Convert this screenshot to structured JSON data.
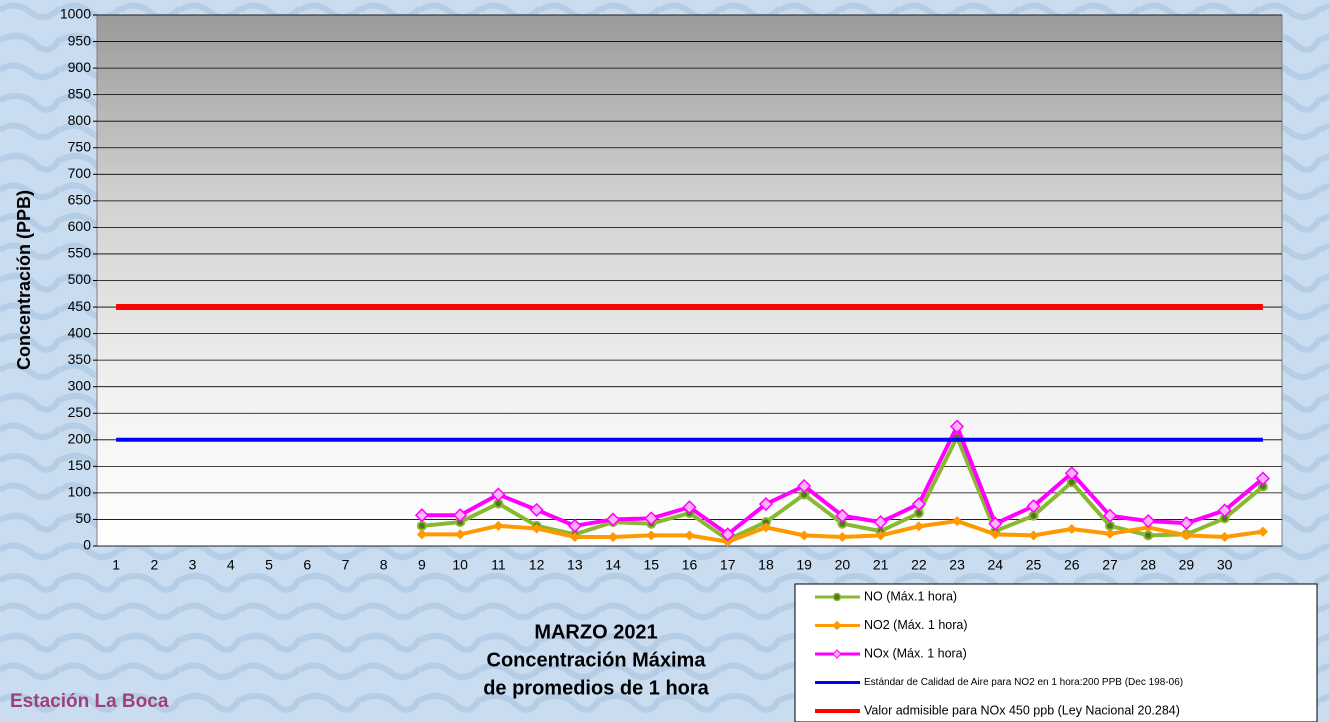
{
  "chart_data": {
    "type": "line",
    "title_lines": [
      "MARZO 2021",
      "Concentración Máxima",
      "de promedios de 1 hora"
    ],
    "station": "Estación La Boca",
    "y_label": "Concentración  (PPB)",
    "categories": [
      "1",
      "2",
      "3",
      "4",
      "5",
      "6",
      "7",
      "8",
      "9",
      "10",
      "11",
      "12",
      "13",
      "14",
      "15",
      "16",
      "17",
      "18",
      "19",
      "20",
      "21",
      "22",
      "23",
      "24",
      "25",
      "26",
      "27",
      "28",
      "29",
      "30",
      null
    ],
    "ylim": [
      0,
      1000
    ],
    "yticks": [
      0,
      50,
      100,
      150,
      200,
      250,
      300,
      350,
      400,
      450,
      500,
      550,
      600,
      650,
      700,
      750,
      800,
      850,
      900,
      950,
      1000
    ],
    "grid": true,
    "series": [
      {
        "name": "NO (Máx.1 hora)",
        "color": "#8ab833",
        "marker": "circle",
        "values": [
          null,
          null,
          null,
          null,
          null,
          null,
          null,
          null,
          38,
          45,
          80,
          38,
          22,
          45,
          42,
          62,
          12,
          45,
          97,
          42,
          28,
          62,
          205,
          28,
          57,
          120,
          38,
          20,
          22,
          52,
          112
        ]
      },
      {
        "name": "NO2 (Máx. 1 hora)",
        "color": "#ff9900",
        "marker": "diamond",
        "values": [
          null,
          null,
          null,
          null,
          null,
          null,
          null,
          null,
          22,
          22,
          38,
          33,
          17,
          17,
          20,
          20,
          8,
          35,
          20,
          17,
          20,
          37,
          47,
          22,
          20,
          32,
          23,
          35,
          20,
          17,
          27
        ]
      },
      {
        "name": "NOx (Máx. 1 hora)",
        "color": "#ff00ff",
        "marker": "diamond",
        "values": [
          null,
          null,
          null,
          null,
          null,
          null,
          null,
          null,
          58,
          58,
          97,
          68,
          38,
          50,
          52,
          73,
          22,
          79,
          113,
          57,
          45,
          79,
          225,
          42,
          75,
          137,
          57,
          47,
          43,
          67,
          127
        ]
      },
      {
        "name": "Estándar de Calidad de Aire para NO2 en 1 hora:200 PPB (Dec 198-06)",
        "color": "#0000ff",
        "marker": "none",
        "small": true,
        "values": [
          200,
          200,
          200,
          200,
          200,
          200,
          200,
          200,
          200,
          200,
          200,
          200,
          200,
          200,
          200,
          200,
          200,
          200,
          200,
          200,
          200,
          200,
          200,
          200,
          200,
          200,
          200,
          200,
          200,
          200,
          200
        ]
      },
      {
        "name": "Valor admisible para NOx 450 ppb (Ley Nacional 20.284)",
        "color": "#ff0000",
        "marker": "none",
        "values": [
          450,
          450,
          450,
          450,
          450,
          450,
          450,
          450,
          450,
          450,
          450,
          450,
          450,
          450,
          450,
          450,
          450,
          450,
          450,
          450,
          450,
          450,
          450,
          450,
          450,
          450,
          450,
          450,
          450,
          450,
          450
        ]
      }
    ]
  }
}
